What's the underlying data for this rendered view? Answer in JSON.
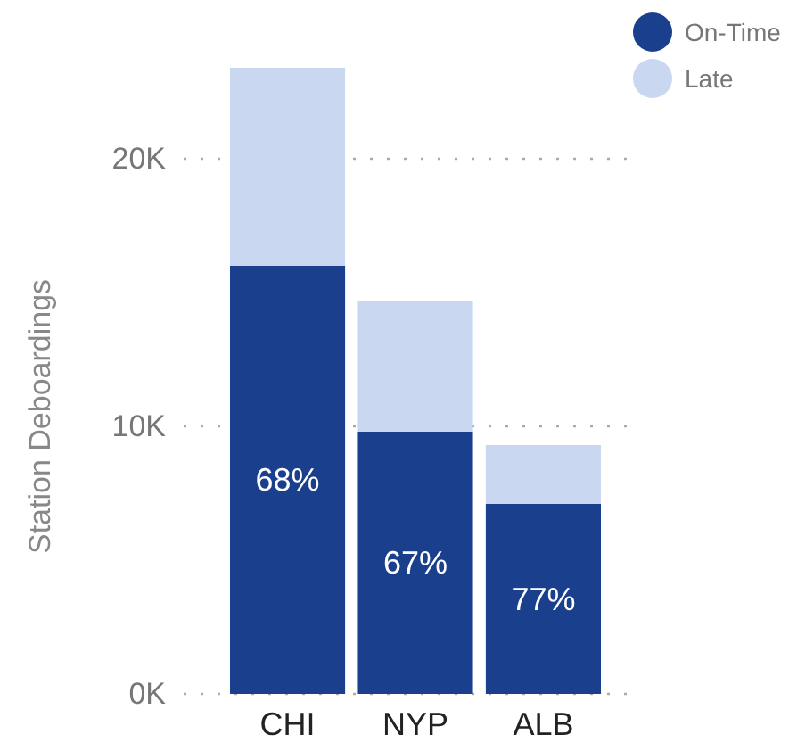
{
  "chart_data": {
    "type": "bar",
    "stacked": true,
    "ylabel": "Station Deboardings",
    "categories": [
      "CHI",
      "NYP",
      "ALB"
    ],
    "series": [
      {
        "name": "On-Time",
        "color": "#1a3f8c",
        "values": [
          16000,
          9800,
          7100
        ]
      },
      {
        "name": "Late",
        "color": "#c9d8f0",
        "values": [
          7400,
          4900,
          2200
        ]
      }
    ],
    "annotations": [
      "68%",
      "67%",
      "77%"
    ],
    "ylim": [
      0,
      23400
    ],
    "yticks": [
      {
        "value": 0,
        "label": "0K"
      },
      {
        "value": 10000,
        "label": "10K"
      },
      {
        "value": 20000,
        "label": "20K"
      }
    ],
    "grid": "y",
    "legend": "top right"
  }
}
